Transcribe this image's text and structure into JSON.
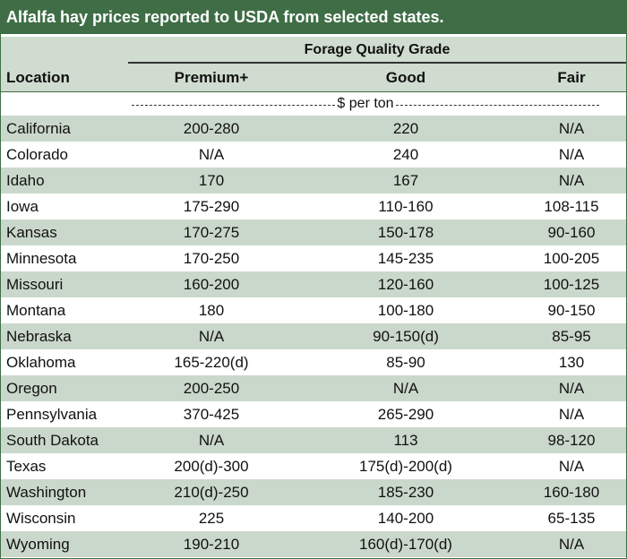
{
  "title": "Alfalfa hay prices reported to USDA from selected states.",
  "header": {
    "grade_group": "Forage Quality Grade",
    "location": "Location",
    "columns": [
      "Premium+",
      "Good",
      "Fair"
    ],
    "units": "$ per ton"
  },
  "rows": [
    {
      "location": "California",
      "premium": "200-280",
      "good": "220",
      "fair": "N/A"
    },
    {
      "location": "Colorado",
      "premium": "N/A",
      "good": "240",
      "fair": "N/A"
    },
    {
      "location": "Idaho",
      "premium": "170",
      "good": "167",
      "fair": "N/A"
    },
    {
      "location": "Iowa",
      "premium": "175-290",
      "good": "110-160",
      "fair": "108-115"
    },
    {
      "location": "Kansas",
      "premium": "170-275",
      "good": "150-178",
      "fair": "90-160"
    },
    {
      "location": "Minnesota",
      "premium": "170-250",
      "good": "145-235",
      "fair": "100-205"
    },
    {
      "location": "Missouri",
      "premium": "160-200",
      "good": "120-160",
      "fair": "100-125"
    },
    {
      "location": "Montana",
      "premium": "180",
      "good": "100-180",
      "fair": "90-150"
    },
    {
      "location": "Nebraska",
      "premium": "N/A",
      "good": "90-150(d)",
      "fair": "85-95"
    },
    {
      "location": "Oklahoma",
      "premium": "165-220(d)",
      "good": "85-90",
      "fair": "130"
    },
    {
      "location": "Oregon",
      "premium": "200-250",
      "good": "N/A",
      "fair": "N/A"
    },
    {
      "location": "Pennsylvania",
      "premium": "370-425",
      "good": "265-290",
      "fair": "N/A"
    },
    {
      "location": "South Dakota",
      "premium": "N/A",
      "good": "113",
      "fair": "98-120"
    },
    {
      "location": "Texas",
      "premium": "200(d)-300",
      "good": "175(d)-200(d)",
      "fair": "N/A"
    },
    {
      "location": "Washington",
      "premium": "210(d)-250",
      "good": "185-230",
      "fair": "160-180"
    },
    {
      "location": "Wisconsin",
      "premium": "225",
      "good": "140-200",
      "fair": "65-135"
    },
    {
      "location": "Wyoming",
      "premium": "190-210",
      "good": "160(d)-170(d)",
      "fair": "N/A"
    }
  ],
  "colors": {
    "title_bg": "#3f6e46",
    "band": "#cad8cb",
    "header_bg": "#cfdccf"
  }
}
